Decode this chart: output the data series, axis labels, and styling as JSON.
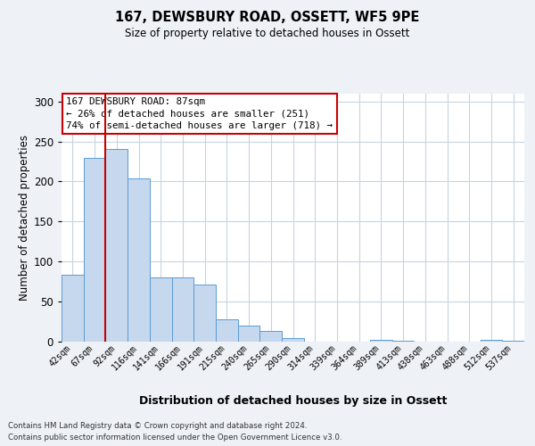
{
  "title1": "167, DEWSBURY ROAD, OSSETT, WF5 9PE",
  "title2": "Size of property relative to detached houses in Ossett",
  "xlabel": "Distribution of detached houses by size in Ossett",
  "ylabel": "Number of detached properties",
  "bar_labels": [
    "42sqm",
    "67sqm",
    "92sqm",
    "116sqm",
    "141sqm",
    "166sqm",
    "191sqm",
    "215sqm",
    "240sqm",
    "265sqm",
    "290sqm",
    "314sqm",
    "339sqm",
    "364sqm",
    "389sqm",
    "413sqm",
    "438sqm",
    "463sqm",
    "488sqm",
    "512sqm",
    "537sqm"
  ],
  "bar_values": [
    83,
    230,
    241,
    204,
    80,
    80,
    71,
    27,
    20,
    13,
    4,
    0,
    0,
    0,
    2,
    1,
    0,
    0,
    0,
    2,
    1
  ],
  "bar_color": "#c5d8ed",
  "bar_edge_color": "#5b9bd5",
  "ylim": [
    0,
    310
  ],
  "yticks": [
    0,
    50,
    100,
    150,
    200,
    250,
    300
  ],
  "property_label": "167 DEWSBURY ROAD: 87sqm",
  "annotation_line1": "← 26% of detached houses are smaller (251)",
  "annotation_line2": "74% of semi-detached houses are larger (718) →",
  "vline_color": "#cc0000",
  "annotation_box_color": "#ffffff",
  "annotation_box_edge": "#cc0000",
  "footer1": "Contains HM Land Registry data © Crown copyright and database right 2024.",
  "footer2": "Contains public sector information licensed under the Open Government Licence v3.0.",
  "bg_color": "#eef2f7",
  "plot_bg_color": "#ffffff",
  "grid_color": "#c8d4e0"
}
